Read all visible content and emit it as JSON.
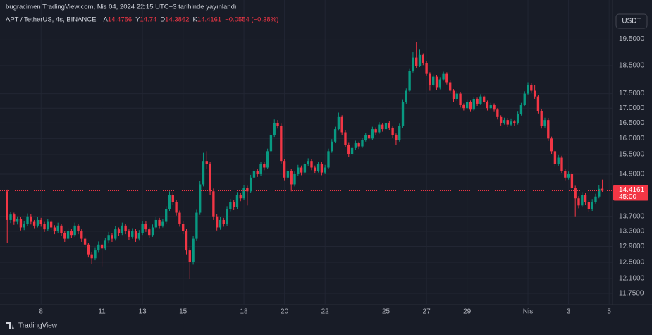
{
  "chart_data": {
    "type": "candlestick",
    "published": "bugracimen TradingView.com, Nis 04, 2024 22:15 UTC+3 tarihinde yayınlandı",
    "title": "APT / TetherUS, 4s, BINANCE",
    "ohlc_labels": [
      "A",
      "Y",
      "D",
      "K"
    ],
    "change": "−0.0554 (−0.38%)",
    "currency": "USDT",
    "countdown": "45:00",
    "brand": "TradingView",
    "up_color": "#089981",
    "down_color": "#f23645",
    "log_scale": true,
    "grid": true,
    "ylim": [
      11.44,
      20.5
    ],
    "yticks": [
      {
        "value": 19.5,
        "label": "19.5000"
      },
      {
        "value": 18.5,
        "label": "18.5000"
      },
      {
        "value": 17.5,
        "label": "17.5000"
      },
      {
        "value": 17,
        "label": "17.0000"
      },
      {
        "value": 16.5,
        "label": "16.5000"
      },
      {
        "value": 16,
        "label": "16.0000"
      },
      {
        "value": 15.5,
        "label": "15.5000"
      },
      {
        "value": 14.9,
        "label": "14.9000"
      },
      {
        "value": 13.7,
        "label": "13.7000"
      },
      {
        "value": 13.3,
        "label": "13.3000"
      },
      {
        "value": 12.9,
        "label": "12.9000"
      },
      {
        "value": 12.5,
        "label": "12.5000"
      },
      {
        "value": 12.1,
        "label": "12.1000"
      },
      {
        "value": 11.75,
        "label": "11.7500"
      }
    ],
    "xlim": [
      -1.3,
      178.8
    ],
    "xticks": [
      {
        "value": 10,
        "label": "8"
      },
      {
        "value": 28,
        "label": "11"
      },
      {
        "value": 40,
        "label": "13"
      },
      {
        "value": 52,
        "label": "15"
      },
      {
        "value": 70,
        "label": "18"
      },
      {
        "value": 82,
        "label": "20"
      },
      {
        "value": 94,
        "label": "22"
      },
      {
        "value": 112,
        "label": "25"
      },
      {
        "value": 124,
        "label": "27"
      },
      {
        "value": 136,
        "label": "29"
      },
      {
        "value": 154,
        "label": "Nis"
      },
      {
        "value": 166,
        "label": "3"
      },
      {
        "value": 178,
        "label": "5"
      }
    ],
    "candles": [
      [
        14.4,
        14.45,
        13.0,
        13.6
      ],
      [
        13.6,
        13.83,
        13.52,
        13.75
      ],
      [
        13.75,
        13.8,
        13.47,
        13.55
      ],
      [
        13.55,
        13.7,
        13.48,
        13.62
      ],
      [
        13.62,
        13.68,
        13.32,
        13.4
      ],
      [
        13.4,
        13.58,
        13.33,
        13.5
      ],
      [
        13.5,
        13.78,
        13.44,
        13.7
      ],
      [
        13.7,
        13.76,
        13.48,
        13.55
      ],
      [
        13.55,
        13.6,
        13.38,
        13.45
      ],
      [
        13.45,
        13.68,
        13.4,
        13.6
      ],
      [
        13.6,
        13.66,
        13.42,
        13.5
      ],
      [
        13.5,
        13.55,
        13.28,
        13.35
      ],
      [
        13.35,
        13.62,
        13.3,
        13.55
      ],
      [
        13.55,
        13.6,
        13.33,
        13.4
      ],
      [
        13.4,
        13.46,
        13.22,
        13.3
      ],
      [
        13.3,
        13.53,
        13.25,
        13.45
      ],
      [
        13.45,
        13.5,
        13.18,
        13.25
      ],
      [
        13.25,
        13.3,
        13.02,
        13.1
      ],
      [
        13.1,
        13.38,
        13.05,
        13.3
      ],
      [
        13.3,
        13.36,
        13.12,
        13.2
      ],
      [
        13.2,
        13.53,
        13.15,
        13.45
      ],
      [
        13.45,
        13.5,
        13.22,
        13.3
      ],
      [
        13.3,
        13.35,
        13.02,
        13.1
      ],
      [
        13.1,
        13.16,
        12.87,
        12.95
      ],
      [
        12.95,
        13.0,
        12.62,
        12.7
      ],
      [
        12.7,
        12.76,
        12.45,
        12.6
      ],
      [
        12.6,
        12.88,
        12.55,
        12.8
      ],
      [
        12.8,
        13.03,
        12.74,
        12.95
      ],
      [
        12.95,
        13.0,
        12.4,
        12.85
      ],
      [
        12.85,
        13.13,
        12.8,
        13.05
      ],
      [
        13.05,
        13.28,
        12.98,
        13.2
      ],
      [
        13.2,
        13.25,
        13.02,
        13.1
      ],
      [
        13.1,
        13.43,
        13.05,
        13.35
      ],
      [
        13.35,
        13.4,
        13.18,
        13.25
      ],
      [
        13.25,
        13.53,
        13.2,
        13.45
      ],
      [
        13.45,
        13.5,
        13.22,
        13.3
      ],
      [
        13.3,
        13.35,
        13.07,
        13.15
      ],
      [
        13.15,
        13.38,
        13.1,
        13.3
      ],
      [
        13.3,
        13.36,
        13.02,
        13.1
      ],
      [
        13.1,
        13.33,
        13.05,
        13.25
      ],
      [
        13.25,
        13.58,
        13.2,
        13.5
      ],
      [
        13.5,
        13.56,
        13.28,
        13.35
      ],
      [
        13.35,
        13.4,
        13.12,
        13.2
      ],
      [
        13.2,
        13.48,
        13.15,
        13.4
      ],
      [
        13.4,
        13.68,
        13.35,
        13.6
      ],
      [
        13.6,
        13.66,
        13.38,
        13.45
      ],
      [
        13.45,
        13.63,
        13.4,
        13.55
      ],
      [
        13.55,
        13.98,
        13.5,
        13.9
      ],
      [
        13.9,
        14.4,
        13.85,
        14.3
      ],
      [
        14.3,
        14.38,
        14.02,
        14.1
      ],
      [
        14.1,
        14.16,
        13.72,
        13.8
      ],
      [
        13.8,
        13.86,
        13.42,
        13.5
      ],
      [
        13.5,
        13.56,
        13.22,
        13.3
      ],
      [
        13.3,
        13.36,
        12.7,
        12.8
      ],
      [
        12.8,
        12.88,
        12.1,
        12.5
      ],
      [
        12.5,
        13.18,
        12.44,
        13.1
      ],
      [
        13.1,
        13.88,
        13.04,
        13.8
      ],
      [
        13.8,
        14.7,
        13.74,
        14.6
      ],
      [
        14.6,
        15.55,
        14.54,
        15.3
      ],
      [
        15.3,
        15.6,
        15.05,
        15.2
      ],
      [
        15.2,
        15.28,
        14.3,
        14.4
      ],
      [
        14.4,
        14.48,
        13.6,
        13.7
      ],
      [
        13.7,
        13.76,
        13.32,
        13.4
      ],
      [
        13.4,
        13.68,
        13.34,
        13.6
      ],
      [
        13.6,
        13.66,
        13.42,
        13.5
      ],
      [
        13.5,
        13.98,
        13.44,
        13.9
      ],
      [
        13.9,
        14.18,
        13.84,
        14.1
      ],
      [
        14.1,
        14.16,
        13.87,
        13.95
      ],
      [
        13.95,
        14.38,
        13.9,
        14.3
      ],
      [
        14.3,
        14.36,
        14.12,
        14.2
      ],
      [
        14.2,
        14.58,
        14.15,
        14.5
      ],
      [
        14.5,
        14.56,
        14.0,
        14.4
      ],
      [
        14.4,
        14.88,
        14.35,
        14.8
      ],
      [
        14.8,
        15.08,
        14.74,
        15.0
      ],
      [
        15.0,
        15.06,
        14.82,
        14.9
      ],
      [
        14.9,
        15.28,
        14.85,
        15.2
      ],
      [
        15.2,
        15.26,
        15.02,
        15.1
      ],
      [
        15.1,
        15.68,
        15.05,
        15.6
      ],
      [
        15.6,
        16.18,
        15.55,
        16.1
      ],
      [
        16.1,
        16.62,
        16.05,
        16.5
      ],
      [
        16.5,
        16.6,
        16.32,
        16.4
      ],
      [
        16.4,
        16.48,
        15.22,
        15.3
      ],
      [
        15.3,
        15.36,
        14.72,
        14.8
      ],
      [
        14.8,
        15.08,
        14.74,
        15.0
      ],
      [
        15.0,
        15.06,
        14.4,
        14.6
      ],
      [
        14.6,
        14.98,
        14.54,
        14.9
      ],
      [
        14.9,
        15.18,
        14.84,
        15.1
      ],
      [
        15.1,
        15.16,
        14.87,
        14.95
      ],
      [
        14.95,
        15.28,
        14.9,
        15.2
      ],
      [
        15.2,
        15.38,
        15.14,
        15.3
      ],
      [
        15.3,
        15.36,
        15.02,
        15.1
      ],
      [
        15.1,
        15.16,
        14.92,
        15.0
      ],
      [
        15.0,
        15.28,
        14.95,
        15.2
      ],
      [
        15.2,
        15.26,
        14.87,
        14.95
      ],
      [
        14.95,
        15.18,
        14.9,
        15.1
      ],
      [
        15.1,
        15.68,
        15.05,
        15.6
      ],
      [
        15.6,
        15.98,
        15.55,
        15.9
      ],
      [
        15.9,
        16.38,
        15.85,
        16.3
      ],
      [
        16.3,
        16.85,
        16.25,
        16.7
      ],
      [
        16.7,
        16.76,
        16.12,
        16.2
      ],
      [
        16.2,
        16.26,
        15.72,
        15.8
      ],
      [
        15.8,
        15.86,
        15.42,
        15.5
      ],
      [
        15.5,
        15.78,
        15.45,
        15.7
      ],
      [
        15.7,
        15.93,
        15.65,
        15.85
      ],
      [
        15.85,
        15.9,
        15.67,
        15.75
      ],
      [
        15.75,
        16.03,
        15.7,
        15.95
      ],
      [
        15.95,
        16.18,
        15.9,
        16.1
      ],
      [
        16.1,
        16.16,
        15.92,
        16.0
      ],
      [
        16.0,
        16.38,
        15.95,
        16.3
      ],
      [
        16.3,
        16.36,
        16.12,
        16.2
      ],
      [
        16.2,
        16.53,
        16.15,
        16.45
      ],
      [
        16.45,
        16.5,
        16.22,
        16.3
      ],
      [
        16.3,
        16.58,
        16.25,
        16.5
      ],
      [
        16.5,
        16.56,
        16.27,
        16.35
      ],
      [
        16.35,
        16.4,
        16.02,
        16.1
      ],
      [
        16.1,
        16.16,
        15.8,
        15.95
      ],
      [
        15.95,
        16.48,
        15.9,
        16.4
      ],
      [
        16.4,
        17.28,
        16.35,
        17.2
      ],
      [
        17.2,
        17.68,
        17.15,
        17.6
      ],
      [
        17.6,
        18.38,
        17.55,
        18.3
      ],
      [
        18.3,
        19.0,
        18.25,
        18.8
      ],
      [
        18.8,
        19.4,
        18.42,
        18.5
      ],
      [
        18.5,
        19.1,
        18.45,
        18.9
      ],
      [
        18.9,
        18.96,
        18.52,
        18.6
      ],
      [
        18.6,
        18.66,
        18.12,
        18.2
      ],
      [
        18.2,
        18.26,
        17.6,
        17.8
      ],
      [
        17.8,
        18.18,
        17.75,
        18.1
      ],
      [
        18.1,
        18.16,
        17.62,
        17.7
      ],
      [
        17.7,
        18.08,
        17.65,
        18.0
      ],
      [
        18.0,
        18.28,
        17.95,
        18.2
      ],
      [
        18.2,
        18.26,
        17.82,
        17.9
      ],
      [
        17.9,
        17.96,
        17.52,
        17.6
      ],
      [
        17.6,
        17.66,
        17.22,
        17.3
      ],
      [
        17.3,
        17.58,
        17.25,
        17.5
      ],
      [
        17.5,
        17.56,
        17.02,
        17.1
      ],
      [
        17.1,
        17.16,
        16.92,
        17.0
      ],
      [
        17.0,
        17.28,
        16.95,
        17.2
      ],
      [
        17.2,
        17.26,
        16.87,
        16.95
      ],
      [
        16.95,
        17.38,
        16.9,
        17.3
      ],
      [
        17.3,
        17.36,
        17.07,
        17.15
      ],
      [
        17.15,
        17.48,
        17.1,
        17.4
      ],
      [
        17.4,
        17.46,
        17.12,
        17.2
      ],
      [
        17.2,
        17.26,
        16.92,
        17.0
      ],
      [
        17.0,
        17.18,
        16.95,
        17.1
      ],
      [
        17.1,
        17.16,
        16.87,
        16.95
      ],
      [
        16.95,
        17.0,
        16.62,
        16.7
      ],
      [
        16.7,
        16.76,
        16.42,
        16.5
      ],
      [
        16.5,
        16.68,
        16.45,
        16.6
      ],
      [
        16.6,
        16.66,
        16.37,
        16.45
      ],
      [
        16.45,
        16.63,
        16.4,
        16.55
      ],
      [
        16.55,
        16.6,
        16.42,
        16.5
      ],
      [
        16.5,
        16.88,
        16.45,
        16.8
      ],
      [
        16.8,
        17.18,
        16.75,
        17.1
      ],
      [
        17.1,
        17.58,
        17.05,
        17.5
      ],
      [
        17.5,
        17.9,
        17.45,
        17.8
      ],
      [
        17.8,
        17.86,
        17.52,
        17.6
      ],
      [
        17.6,
        17.8,
        17.32,
        17.4
      ],
      [
        17.4,
        17.46,
        16.82,
        16.9
      ],
      [
        16.9,
        16.96,
        16.32,
        16.4
      ],
      [
        16.4,
        16.68,
        16.35,
        16.6
      ],
      [
        16.6,
        16.66,
        15.92,
        16.0
      ],
      [
        16.0,
        16.06,
        15.52,
        15.6
      ],
      [
        15.6,
        15.66,
        15.12,
        15.2
      ],
      [
        15.2,
        15.48,
        15.15,
        15.4
      ],
      [
        15.4,
        15.46,
        14.92,
        15.0
      ],
      [
        15.0,
        15.06,
        14.72,
        14.8
      ],
      [
        14.8,
        14.98,
        14.74,
        14.9
      ],
      [
        14.9,
        14.96,
        14.42,
        14.5
      ],
      [
        14.5,
        14.56,
        13.7,
        14.2
      ],
      [
        14.2,
        14.26,
        13.92,
        14.0
      ],
      [
        14.0,
        14.38,
        13.95,
        14.3
      ],
      [
        14.3,
        14.36,
        14.02,
        14.1
      ],
      [
        14.1,
        14.16,
        13.82,
        13.9
      ],
      [
        13.9,
        14.18,
        13.85,
        14.1
      ],
      [
        14.1,
        14.33,
        14.05,
        14.25
      ],
      [
        14.25,
        14.58,
        14.2,
        14.4715
      ],
      [
        14.4756,
        14.74,
        14.3862,
        14.4161
      ]
    ]
  }
}
